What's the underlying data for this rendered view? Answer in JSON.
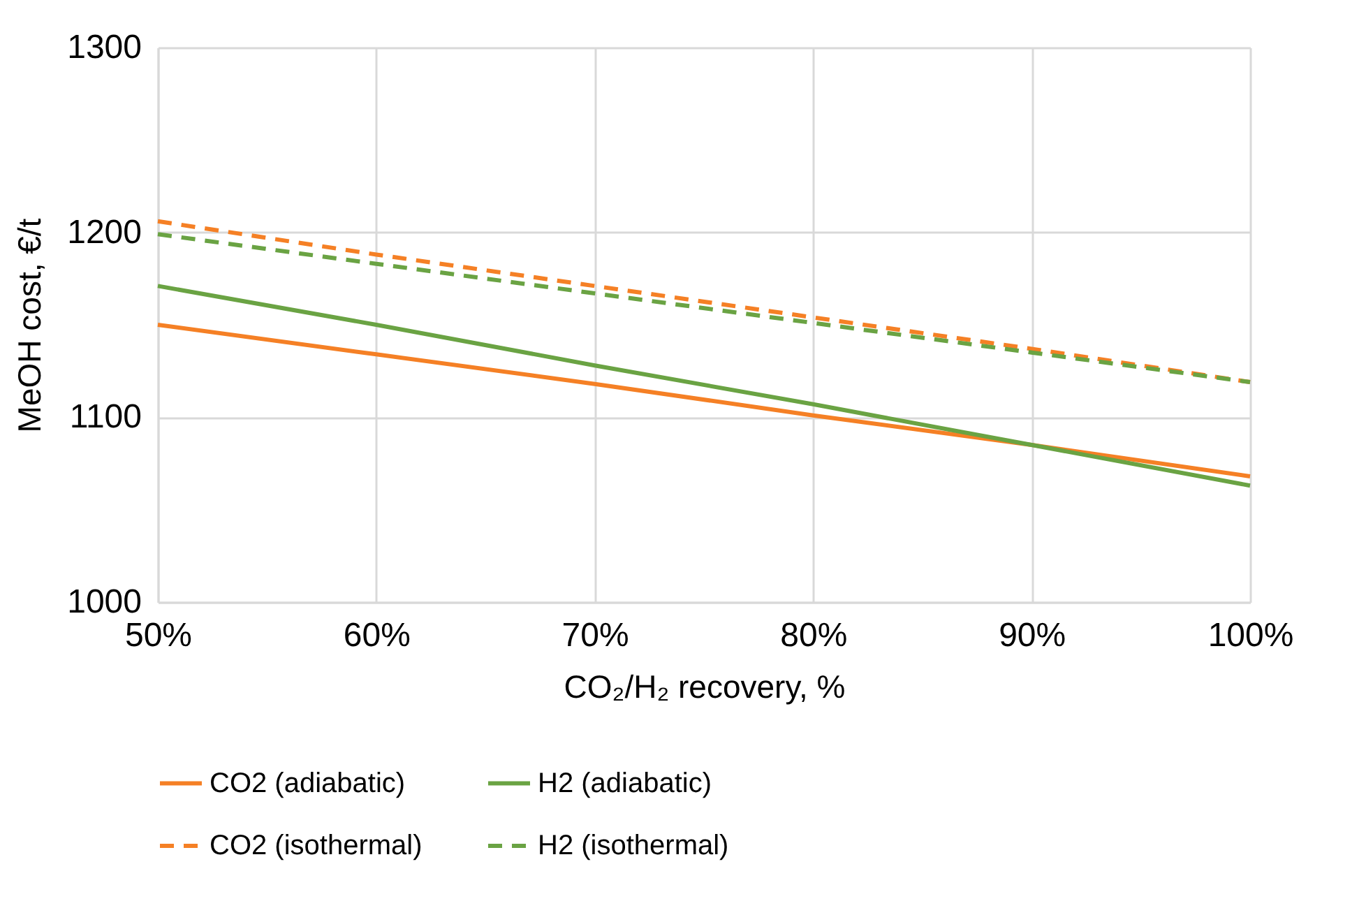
{
  "chart_data": {
    "type": "line",
    "xlabel": "CO₂/H₂ recovery, %",
    "ylabel": "MeOH cost, €/t",
    "x": [
      0.5,
      0.6,
      0.7,
      0.8,
      0.9,
      1.0
    ],
    "xlim": [
      0.5,
      1.0
    ],
    "xticks": [
      {
        "value": 0.5,
        "label": "50%"
      },
      {
        "value": 0.6,
        "label": "60%"
      },
      {
        "value": 0.7,
        "label": "70%"
      },
      {
        "value": 0.8,
        "label": "80%"
      },
      {
        "value": 0.9,
        "label": "90%"
      },
      {
        "value": 1.0,
        "label": "100%"
      }
    ],
    "ylim": [
      1000,
      1300
    ],
    "yticks": [
      1000,
      1100,
      1200,
      1300
    ],
    "grid": true,
    "legend": "bottom",
    "marker": "none",
    "series": [
      {
        "name": "CO2 (adiabatic)",
        "color": "#f58025",
        "line_style": "solid",
        "values": [
          1150,
          1134,
          1118,
          1101,
          1085,
          1068
        ]
      },
      {
        "name": "H2 (adiabatic)",
        "color": "#6aa343",
        "line_style": "solid",
        "values": [
          1171,
          1150,
          1128,
          1107,
          1085,
          1063
        ]
      },
      {
        "name": "CO2 (isothermal)",
        "color": "#f58025",
        "line_style": "dashed",
        "values": [
          1206,
          1188,
          1171,
          1154,
          1137,
          1119
        ]
      },
      {
        "name": "H2 (isothermal)",
        "color": "#6aa343",
        "line_style": "dashed",
        "values": [
          1199,
          1183,
          1167,
          1151,
          1135,
          1119
        ]
      }
    ]
  }
}
